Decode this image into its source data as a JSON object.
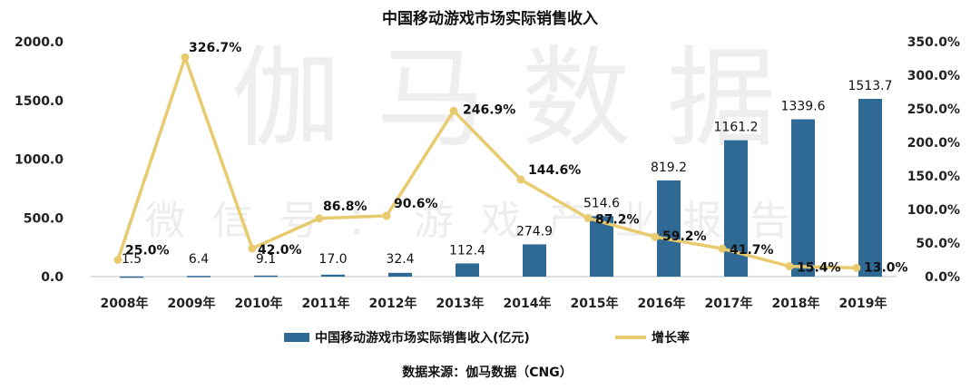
{
  "watermark": {
    "main": "伽马数据",
    "sub": "微信号：游戏产业报告"
  },
  "chart_data": {
    "type": "bar+line",
    "title": "中国移动游戏市场实际销售收入",
    "categories": [
      "2008年",
      "2009年",
      "2010年",
      "2011年",
      "2012年",
      "2013年",
      "2014年",
      "2015年",
      "2016年",
      "2017年",
      "2018年",
      "2019年"
    ],
    "series": [
      {
        "name": "中国移动游戏市场实际销售收入(亿元)",
        "type": "bar",
        "axis": "left",
        "color": "#2e6a94",
        "values": [
          1.5,
          6.4,
          9.1,
          17.0,
          32.4,
          112.4,
          274.9,
          514.6,
          819.2,
          1161.2,
          1339.6,
          1513.7
        ],
        "labels": [
          "1.5",
          "6.4",
          "9.1",
          "17.0",
          "32.4",
          "112.4",
          "274.9",
          "514.6",
          "819.2",
          "1161.2",
          "1339.6",
          "1513.7"
        ]
      },
      {
        "name": "增长率",
        "type": "line",
        "axis": "right",
        "color": "#e8cb6e",
        "values": [
          25.0,
          326.7,
          42.0,
          86.8,
          90.6,
          246.9,
          144.6,
          87.2,
          59.2,
          41.7,
          15.4,
          13.0
        ],
        "labels": [
          "25.0%",
          "326.7%",
          "42.0%",
          "86.8%",
          "90.6%",
          "246.9%",
          "144.6%",
          "87.2%",
          "59.2%",
          "41.7%",
          "15.4%",
          "13.0%"
        ]
      }
    ],
    "yleft": {
      "min": 0,
      "max": 2000,
      "ticks": [
        "0.0",
        "500.0",
        "1000.0",
        "1500.0",
        "2000.0"
      ]
    },
    "yright": {
      "min": 0,
      "max": 350,
      "ticks": [
        "0.0%",
        "50.0%",
        "100.0%",
        "150.0%",
        "200.0%",
        "250.0%",
        "300.0%",
        "350.0%"
      ]
    },
    "legend": [
      {
        "label": "中国移动游戏市场实际销售收入(亿元)",
        "kind": "bar"
      },
      {
        "label": "增长率",
        "kind": "line"
      }
    ],
    "legend_position": "bottom",
    "source": "数据来源：伽马数据（CNG）"
  }
}
